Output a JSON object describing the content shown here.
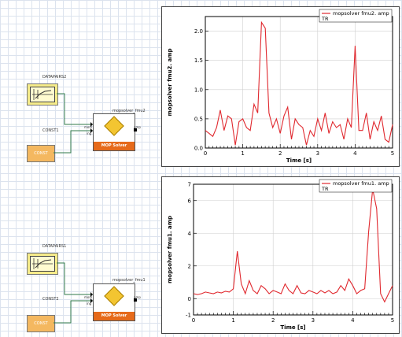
{
  "group1": {
    "datapairs_label": "DATAPAIRS2",
    "const_label": "CONST1",
    "const_block_text": "CONST",
    "mop_title": "mopsolver_fmu2",
    "port_inputs": [
      "mom",
      "ing"
    ],
    "port_output": "amp",
    "mop_footer": "MOP Solver"
  },
  "group2": {
    "datapairs_label": "DATAPAIRS1",
    "const_label": "CONST2",
    "const_block_text": "CONST",
    "mop_title": "mopsolver_fmu1",
    "port_inputs": [
      "mom",
      "ing"
    ],
    "port_output": "amp",
    "mop_footer": "MOP Solver"
  },
  "chart_data": [
    {
      "type": "line",
      "legend": [
        "mopsolver fmu2. amp",
        "TR"
      ],
      "ylabel": "mopsolver fmu2. amp",
      "xlabel": "Time [s]",
      "xlim": [
        0,
        5
      ],
      "ylim": [
        0,
        2.25
      ],
      "xticks": [
        0,
        1,
        2,
        3,
        4,
        5
      ],
      "yticks": [
        0.0,
        0.5,
        1.0,
        1.5,
        2.0
      ],
      "ytick_labels": [
        "0.0",
        "0.5",
        "1.0",
        "1.5",
        "2.0"
      ],
      "color": "#e0282e",
      "series": [
        {
          "name": "mopsolver fmu2. amp",
          "x": [
            0,
            0.1,
            0.2,
            0.3,
            0.4,
            0.5,
            0.6,
            0.7,
            0.8,
            0.9,
            1.0,
            1.1,
            1.2,
            1.3,
            1.4,
            1.5,
            1.6,
            1.7,
            1.8,
            1.9,
            2.0,
            2.1,
            2.2,
            2.3,
            2.4,
            2.5,
            2.6,
            2.7,
            2.8,
            2.9,
            3.0,
            3.1,
            3.2,
            3.3,
            3.4,
            3.5,
            3.6,
            3.7,
            3.8,
            3.9,
            4.0,
            4.1,
            4.2,
            4.3,
            4.4,
            4.5,
            4.6,
            4.7,
            4.8,
            4.9,
            5.0
          ],
          "y": [
            0.3,
            0.25,
            0.2,
            0.35,
            0.65,
            0.3,
            0.55,
            0.5,
            0.05,
            0.45,
            0.5,
            0.35,
            0.3,
            0.75,
            0.6,
            2.15,
            2.05,
            0.6,
            0.35,
            0.5,
            0.25,
            0.55,
            0.7,
            0.15,
            0.5,
            0.4,
            0.35,
            0.05,
            0.3,
            0.2,
            0.5,
            0.3,
            0.6,
            0.25,
            0.45,
            0.35,
            0.4,
            0.15,
            0.5,
            0.35,
            1.75,
            0.3,
            0.3,
            0.6,
            0.15,
            0.45,
            0.3,
            0.55,
            0.15,
            0.1,
            0.4
          ]
        }
      ]
    },
    {
      "type": "line",
      "legend": [
        "mopsolver fmu1. amp",
        "TR"
      ],
      "ylabel": "mopsolver fmu1. amp",
      "xlabel": "Time [s]",
      "xlim": [
        0,
        5
      ],
      "ylim": [
        -1,
        7
      ],
      "xticks": [
        0,
        1,
        2,
        3,
        4,
        5
      ],
      "yticks": [
        -1,
        0,
        2,
        4,
        6,
        7
      ],
      "ytick_labels": [
        "-1",
        "0",
        "2",
        "4",
        "6",
        "7"
      ],
      "color": "#e0282e",
      "series": [
        {
          "name": "mopsolver fmu1. amp",
          "x": [
            0,
            0.1,
            0.2,
            0.3,
            0.4,
            0.5,
            0.6,
            0.7,
            0.8,
            0.9,
            1.0,
            1.1,
            1.2,
            1.3,
            1.4,
            1.5,
            1.6,
            1.7,
            1.8,
            1.9,
            2.0,
            2.1,
            2.2,
            2.3,
            2.4,
            2.5,
            2.6,
            2.7,
            2.8,
            2.9,
            3.0,
            3.1,
            3.2,
            3.3,
            3.4,
            3.5,
            3.6,
            3.7,
            3.8,
            3.9,
            4.0,
            4.1,
            4.2,
            4.3,
            4.4,
            4.5,
            4.6,
            4.7,
            4.8,
            4.9,
            5.0
          ],
          "y": [
            0.3,
            0.25,
            0.3,
            0.4,
            0.35,
            0.3,
            0.4,
            0.35,
            0.45,
            0.4,
            0.6,
            2.9,
            0.9,
            0.3,
            1.1,
            0.5,
            0.3,
            0.8,
            0.6,
            0.3,
            0.5,
            0.4,
            0.3,
            0.9,
            0.5,
            0.3,
            0.8,
            0.35,
            0.3,
            0.5,
            0.4,
            0.3,
            0.5,
            0.35,
            0.5,
            0.3,
            0.4,
            0.8,
            0.5,
            1.2,
            0.8,
            0.3,
            0.5,
            0.6,
            4.1,
            6.7,
            5.5,
            0.3,
            -0.2,
            0.3,
            0.8
          ]
        }
      ]
    }
  ]
}
